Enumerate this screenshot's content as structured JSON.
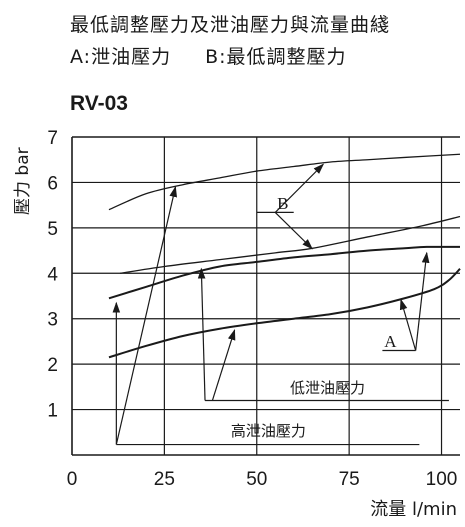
{
  "header": {
    "title": "最低調整壓力及泄油壓力與流量曲綫",
    "legend_a": "A:泄油壓力",
    "legend_b": "B:最低調整壓力",
    "model": "RV-03"
  },
  "chart_data": {
    "type": "line",
    "title": "最低調整壓力及泄油壓力與流量曲綫",
    "subtitle": "RV-03",
    "xlabel": "流量 l/min",
    "ylabel": "壓力 bar",
    "xlim": [
      0,
      105
    ],
    "ylim": [
      0,
      7
    ],
    "x_ticks": [
      "0",
      "25",
      "50",
      "75",
      "100"
    ],
    "y_ticks": [
      "1",
      "2",
      "3",
      "4",
      "5",
      "6",
      "7"
    ],
    "grid": true,
    "series": [
      {
        "name": "B",
        "values": [
          [
            10,
            5.4
          ],
          [
            20,
            5.75
          ],
          [
            30,
            5.95
          ],
          [
            40,
            6.1
          ],
          [
            50,
            6.25
          ],
          [
            60,
            6.35
          ],
          [
            70,
            6.45
          ],
          [
            80,
            6.5
          ],
          [
            90,
            6.55
          ],
          [
            105,
            6.62
          ]
        ]
      },
      {
        "name": "B",
        "values": [
          [
            13,
            4.0
          ],
          [
            25,
            4.15
          ],
          [
            40,
            4.3
          ],
          [
            55,
            4.45
          ],
          [
            65,
            4.55
          ],
          [
            80,
            4.8
          ],
          [
            95,
            5.05
          ],
          [
            105,
            5.25
          ]
        ]
      },
      {
        "name": "A",
        "values": [
          [
            10,
            3.45
          ],
          [
            20,
            3.7
          ],
          [
            30,
            3.95
          ],
          [
            40,
            4.15
          ],
          [
            50,
            4.25
          ],
          [
            60,
            4.35
          ],
          [
            70,
            4.42
          ],
          [
            80,
            4.5
          ],
          [
            90,
            4.55
          ],
          [
            96,
            4.58
          ],
          [
            105,
            4.58
          ]
        ]
      },
      {
        "name": "A",
        "values": [
          [
            10,
            2.15
          ],
          [
            20,
            2.4
          ],
          [
            30,
            2.62
          ],
          [
            40,
            2.78
          ],
          [
            50,
            2.9
          ],
          [
            60,
            3.0
          ],
          [
            70,
            3.1
          ],
          [
            80,
            3.25
          ],
          [
            90,
            3.45
          ],
          [
            98,
            3.65
          ],
          [
            102,
            3.85
          ],
          [
            105,
            4.1
          ]
        ]
      }
    ],
    "annotations": {
      "label_a": "A",
      "label_b": "B",
      "low_drain": "低泄油壓力",
      "high_drain": "高泄油壓力"
    }
  }
}
